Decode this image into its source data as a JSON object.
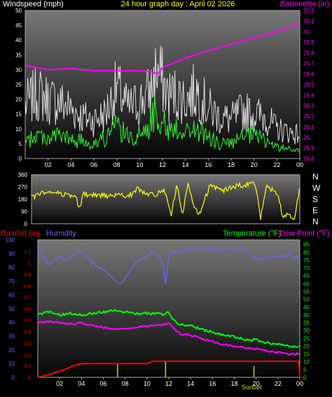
{
  "header": {
    "wind_label": "Windspeed (mph)",
    "title": "24 hour graph day : April 02 2026",
    "baro_label": "Barometer (in)"
  },
  "footer_labels": {
    "rain_label": "Rainfall (in)",
    "humidity_label": "Humidity",
    "temp_label": "Temperature (°F)",
    "dew_label": "Dew Point (°F)"
  },
  "colors": {
    "wind_gust": "#ffffff",
    "wind_avg": "#33ff33",
    "barometer": "#ff00ff",
    "direction": "#ffff00",
    "rain": "#ff0000",
    "humidity": "#6666ff",
    "temperature": "#00ff00",
    "dewpoint": "#ff00ff",
    "sun_marker": "#cccc00"
  },
  "sun_labels": [
    "Sun",
    "Set"
  ],
  "chart_data": [
    {
      "type": "line",
      "name": "wind-barometer",
      "x_ticks": [
        "02",
        "04",
        "06",
        "08",
        "10",
        "12",
        "14",
        "16",
        "18",
        "20",
        "22",
        "00"
      ],
      "y_left_ticks": [
        "0",
        "5",
        "10",
        "15",
        "20",
        "25",
        "30",
        "35",
        "40",
        "45",
        "50"
      ],
      "y_left_lim": [
        0,
        50
      ],
      "y_right_ticks": [
        "28.8",
        "28.9",
        "29",
        "29.1",
        "29.2",
        "29.3",
        "29.4",
        "29.5",
        "29.6",
        "29.7",
        "29.8",
        "29.9",
        "30",
        "30.1",
        "30.2"
      ],
      "y_right_lim": [
        28.8,
        30.2
      ],
      "series": [
        {
          "axis": "left",
          "style": "gust",
          "x": [
            0,
            1,
            2,
            3,
            4,
            5,
            6,
            7,
            8,
            9,
            10,
            11,
            11.5,
            12,
            12.5,
            13,
            14,
            15,
            16,
            17,
            18,
            19,
            20,
            21,
            22,
            23,
            24
          ],
          "values": [
            18,
            22,
            20,
            19,
            17,
            14,
            13,
            15,
            24,
            17,
            19,
            23,
            30,
            26,
            21,
            22,
            20,
            23,
            17,
            14,
            13,
            16,
            15,
            14,
            10,
            9,
            8
          ]
        },
        {
          "axis": "left",
          "style": "avg",
          "x": [
            0,
            1,
            2,
            3,
            4,
            5,
            6,
            7,
            8,
            9,
            10,
            11,
            11.5,
            12,
            12.5,
            13,
            14,
            15,
            16,
            17,
            18,
            19,
            20,
            21,
            22,
            23,
            24
          ],
          "values": [
            5,
            8,
            7,
            8,
            6,
            6,
            5,
            7,
            11,
            7,
            8,
            12,
            17,
            13,
            9,
            11,
            9,
            10,
            7,
            5,
            5,
            7,
            8,
            6,
            4,
            3,
            3
          ]
        },
        {
          "axis": "right",
          "style": "line",
          "x": [
            0,
            2,
            4,
            6,
            8,
            10,
            11,
            11.6,
            12,
            14,
            16,
            18,
            20,
            22,
            24
          ],
          "values": [
            29.68,
            29.64,
            29.65,
            29.63,
            29.63,
            29.63,
            29.62,
            29.6,
            29.66,
            29.75,
            29.82,
            29.88,
            29.94,
            30.0,
            30.07
          ]
        }
      ]
    },
    {
      "type": "line",
      "name": "wind-direction",
      "x_ticks": [],
      "y_left_ticks": [
        "0",
        "90",
        "180",
        "270",
        "360"
      ],
      "y_left_lim": [
        0,
        360
      ],
      "y_right_ticks": [
        "N",
        "E",
        "S",
        "W",
        "N"
      ],
      "series": [
        {
          "axis": "left",
          "style": "direction",
          "x": [
            0,
            1,
            2,
            3,
            4,
            4.3,
            4.6,
            5,
            6,
            7,
            8,
            9,
            9.5,
            10,
            11,
            12,
            12.5,
            13,
            13.5,
            14,
            14.5,
            15,
            16,
            17,
            18,
            19,
            20,
            20.5,
            21,
            22,
            22.5,
            23,
            23.5,
            24
          ],
          "values": [
            190,
            225,
            235,
            215,
            190,
            100,
            220,
            210,
            210,
            205,
            205,
            215,
            260,
            230,
            215,
            240,
            60,
            290,
            60,
            300,
            120,
            60,
            290,
            240,
            270,
            285,
            300,
            40,
            280,
            220,
            40,
            80,
            40,
            260
          ]
        }
      ]
    },
    {
      "type": "line",
      "name": "rain-humidity-temperature",
      "x_ticks": [
        "02",
        "04",
        "06",
        "08",
        "10",
        "12",
        "14",
        "16",
        "18",
        "20",
        "22",
        "00"
      ],
      "rain_ticks": [
        "0",
        "0.1",
        "0.2",
        "0.3",
        "0.4",
        "0.5",
        "0.6",
        "0.7",
        "0.8",
        "0.9",
        "1",
        "1.1"
      ],
      "rain_lim": [
        0,
        1.2
      ],
      "humidity_ticks": [
        "0",
        "10",
        "20",
        "30",
        "40",
        "50",
        "60",
        "70",
        "80",
        "90",
        "100"
      ],
      "humidity_lim": [
        0,
        100
      ],
      "temp_ticks": [
        "0",
        "5",
        "10",
        "15",
        "20",
        "25",
        "30",
        "35",
        "40",
        "45",
        "50",
        "55",
        "60",
        "65",
        "70",
        "75",
        "80",
        "85"
      ],
      "temp_lim": [
        0,
        88
      ],
      "series": [
        {
          "axis": "rain",
          "style": "rain",
          "x": [
            0,
            0.8,
            1.5,
            2.5,
            3.2,
            4,
            6,
            8,
            10,
            10.5,
            11,
            12,
            16,
            18,
            20,
            22,
            23.9,
            24
          ],
          "values": [
            0,
            0.02,
            0.04,
            0.07,
            0.1,
            0.12,
            0.12,
            0.12,
            0.12,
            0.14,
            0.14,
            0.14,
            0.14,
            0.14,
            0.14,
            0.14,
            0.14,
            0.0
          ]
        },
        {
          "axis": "humidity",
          "style": "humidity",
          "x": [
            0,
            0.5,
            1,
            1.5,
            2,
            2.5,
            3,
            3.5,
            4,
            5,
            6,
            7,
            7.5,
            8,
            9,
            10,
            10.5,
            11,
            11.5,
            11.7,
            12,
            13,
            14,
            16,
            18,
            19,
            20,
            22,
            23,
            24
          ],
          "values": [
            93,
            88,
            82,
            85,
            89,
            84,
            87,
            92,
            91,
            84,
            78,
            72,
            68,
            72,
            84,
            88,
            92,
            90,
            82,
            65,
            90,
            92,
            93,
            93,
            93,
            92,
            86,
            88,
            89,
            87
          ]
        },
        {
          "axis": "temp",
          "style": "temperature",
          "x": [
            0,
            1,
            2,
            3,
            4,
            5,
            6,
            7,
            8,
            9,
            10,
            11,
            11.5,
            12,
            12.5,
            13,
            14,
            15,
            16,
            17,
            18,
            19,
            20,
            21,
            22,
            23,
            24
          ],
          "values": [
            40,
            42,
            40,
            41,
            40,
            41,
            42,
            43,
            42,
            41,
            41,
            41,
            40,
            42,
            36,
            34,
            33,
            31,
            29,
            27,
            26,
            24,
            24,
            22,
            21,
            20,
            20
          ]
        },
        {
          "axis": "temp",
          "style": "dewpoint",
          "x": [
            0,
            1,
            2,
            3,
            4,
            5,
            6,
            7,
            8,
            9,
            10,
            11,
            11.5,
            12,
            12.5,
            13,
            14,
            15,
            16,
            17,
            18,
            19,
            20,
            21,
            22,
            23,
            24
          ],
          "values": [
            35,
            36,
            35,
            34,
            35,
            33,
            32,
            31,
            31,
            32,
            33,
            33,
            34,
            35,
            31,
            28,
            27,
            25,
            23,
            21,
            20,
            19,
            18,
            17,
            16,
            15,
            15
          ]
        }
      ],
      "rain_events": {
        "x": [
          7.3,
          11.7,
          19.8
        ],
        "values": [
          0.12,
          0.14,
          0.1
        ]
      }
    }
  ]
}
